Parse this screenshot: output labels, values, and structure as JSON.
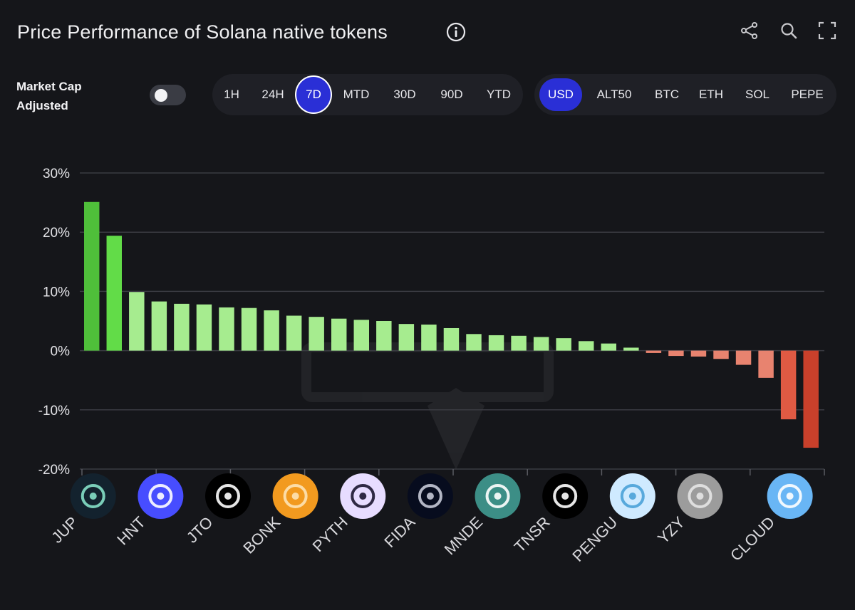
{
  "header": {
    "title": "Price Performance of Solana native tokens",
    "icons": [
      "info-icon",
      "share-icon",
      "zoom-icon",
      "fullscreen-icon"
    ]
  },
  "controls": {
    "market_cap_label": "Market Cap Adjusted",
    "market_cap_enabled": false,
    "time_ranges": [
      {
        "label": "1H",
        "active": false
      },
      {
        "label": "24H",
        "active": false
      },
      {
        "label": "7D",
        "active": true
      },
      {
        "label": "MTD",
        "active": false
      },
      {
        "label": "30D",
        "active": false
      },
      {
        "label": "90D",
        "active": false
      },
      {
        "label": "YTD",
        "active": false
      }
    ],
    "currencies": [
      {
        "label": "USD",
        "active": true
      },
      {
        "label": "ALT50",
        "active": false
      },
      {
        "label": "BTC",
        "active": false
      },
      {
        "label": "ETH",
        "active": false
      },
      {
        "label": "SOL",
        "active": false
      },
      {
        "label": "PEPE",
        "active": false
      }
    ],
    "accent_color": "#2a2fd6"
  },
  "chart_data": {
    "type": "bar",
    "title": "Price Performance of Solana native tokens",
    "xlabel": "",
    "ylabel": "",
    "ylim": [
      -20,
      30
    ],
    "yticks": [
      "30%",
      "20%",
      "10%",
      "0%",
      "-10%",
      "-20%"
    ],
    "ytick_values": [
      30,
      20,
      10,
      0,
      -10,
      -20
    ],
    "grid": true,
    "bar_count": 33,
    "values": [
      25.1,
      19.4,
      9.9,
      8.3,
      7.9,
      7.8,
      7.3,
      7.2,
      6.8,
      5.9,
      5.7,
      5.4,
      5.2,
      5.0,
      4.5,
      4.4,
      3.8,
      2.8,
      2.6,
      2.5,
      2.3,
      2.1,
      1.6,
      1.2,
      0.5,
      -0.4,
      -0.9,
      -1.0,
      -1.4,
      -2.4,
      -4.6,
      -11.6,
      -16.4
    ],
    "labeled_tokens": [
      {
        "label": "JUP",
        "index": 0
      },
      {
        "label": "HNT",
        "index": 3
      },
      {
        "label": "JTO",
        "index": 6
      },
      {
        "label": "BONK",
        "index": 9
      },
      {
        "label": "PYTH",
        "index": 12
      },
      {
        "label": "FIDA",
        "index": 15
      },
      {
        "label": "MNDE",
        "index": 18
      },
      {
        "label": "TNSR",
        "index": 21
      },
      {
        "label": "PENGU",
        "index": 24
      },
      {
        "label": "YZY",
        "index": 27
      },
      {
        "label": "CLOUD",
        "index": 31
      }
    ],
    "colors": {
      "top_positive": "#4fbf3a",
      "strong_positive": "#62dc48",
      "positive": "#a6ec8f",
      "negative_light": "#e8836f",
      "negative_mid": "#e05a43",
      "negative_strong": "#c9402b",
      "grid": "#3a3b42"
    }
  }
}
